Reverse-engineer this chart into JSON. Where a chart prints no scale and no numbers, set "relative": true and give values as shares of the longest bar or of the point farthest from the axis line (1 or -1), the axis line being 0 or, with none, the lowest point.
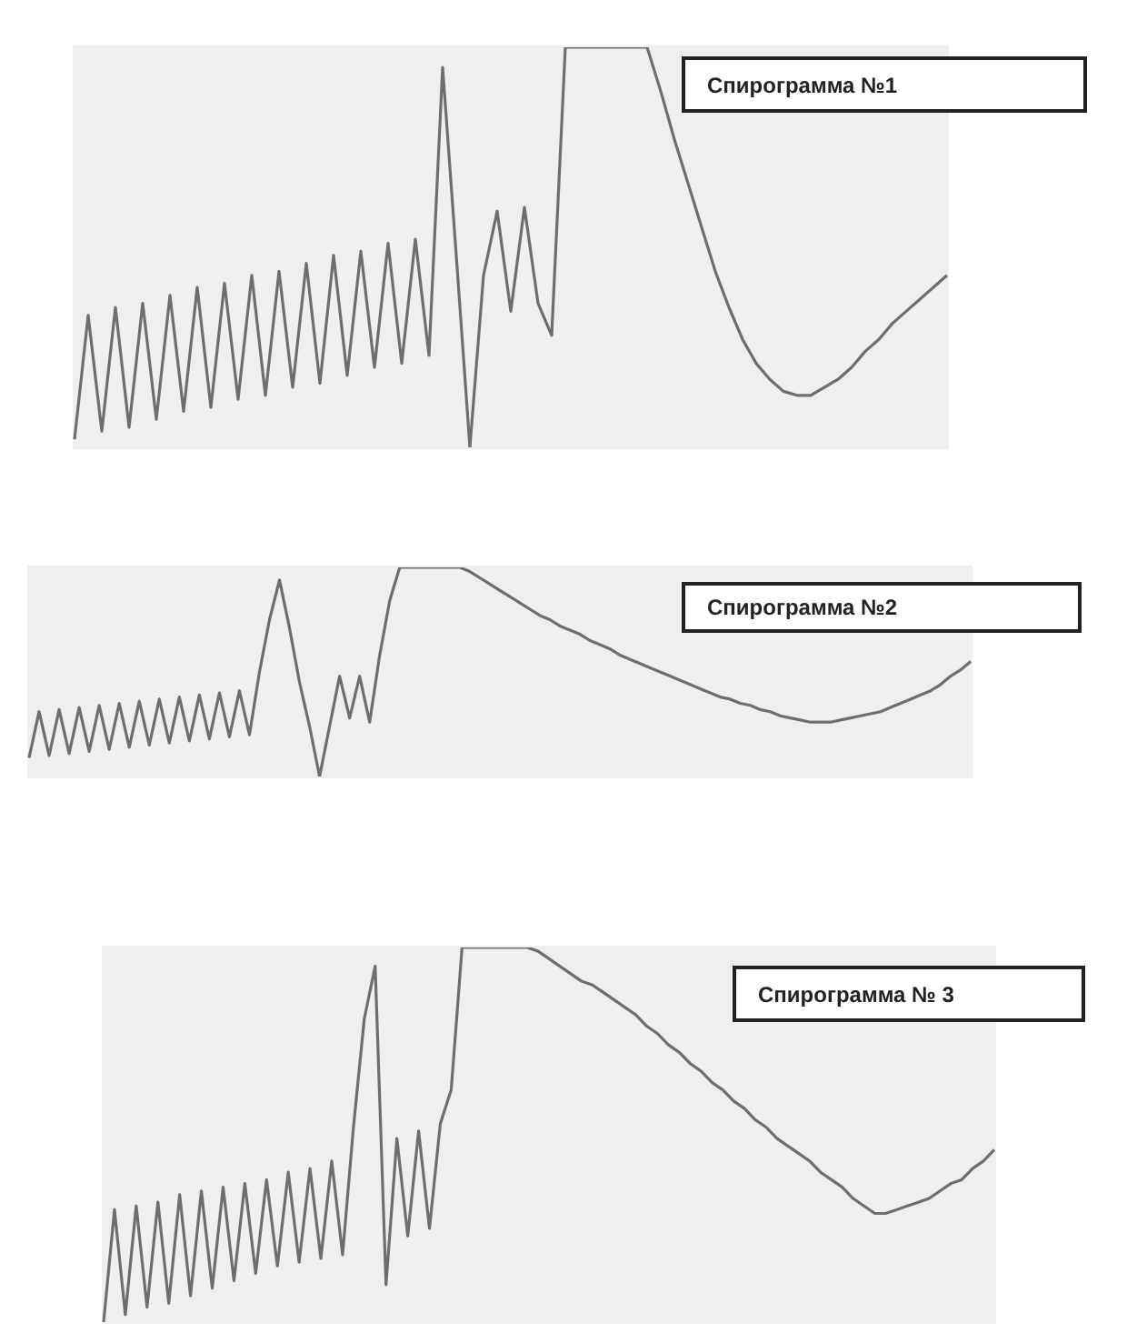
{
  "chart_data": [
    {
      "type": "line",
      "relative": true,
      "marker": "none",
      "color": "#6e6e6e",
      "annotations": [
        "Спирограмма №1"
      ],
      "categories": [
        null,
        null,
        null,
        null,
        null,
        null,
        null,
        null,
        null,
        null,
        null,
        null,
        null,
        null,
        null,
        null,
        null,
        null,
        null,
        null,
        null,
        null,
        null,
        null,
        null,
        null,
        null,
        null,
        null,
        null,
        null,
        null,
        null,
        null,
        null,
        null,
        null,
        null,
        null,
        null,
        null,
        null,
        null,
        null,
        null,
        null,
        null,
        null,
        null,
        null,
        null,
        null,
        null,
        null,
        null,
        null,
        null,
        null,
        null,
        null,
        null,
        null,
        null,
        null,
        null
      ],
      "values": [
        0.02,
        0.33,
        0.04,
        0.35,
        0.05,
        0.36,
        0.07,
        0.38,
        0.09,
        0.4,
        0.1,
        0.41,
        0.12,
        0.43,
        0.13,
        0.44,
        0.15,
        0.46,
        0.16,
        0.48,
        0.18,
        0.49,
        0.2,
        0.51,
        0.21,
        0.52,
        0.23,
        0.95,
        0.48,
        0,
        0.43,
        0.59,
        0.34,
        0.6,
        0.36,
        0.28,
        1,
        1,
        1,
        1,
        1,
        1,
        1,
        0.89,
        0.77,
        0.66,
        0.55,
        0.44,
        0.35,
        0.27,
        0.21,
        0.17,
        0.14,
        0.13,
        0.13,
        0.15,
        0.17,
        0.2,
        0.24,
        0.27,
        0.31,
        0.34,
        0.37,
        0.4,
        0.43
      ]
    },
    {
      "type": "line",
      "relative": true,
      "marker": "none",
      "color": "#6e6e6e",
      "annotations": [
        "Спирограмма №2"
      ],
      "categories": [
        null,
        null,
        null,
        null,
        null,
        null,
        null,
        null,
        null,
        null,
        null,
        null,
        null,
        null,
        null,
        null,
        null,
        null,
        null,
        null,
        null,
        null,
        null,
        null,
        null,
        null,
        null,
        null,
        null,
        null,
        null,
        null,
        null,
        null,
        null,
        null,
        null,
        null,
        null,
        null,
        null,
        null,
        null,
        null,
        null,
        null,
        null,
        null,
        null,
        null,
        null,
        null,
        null,
        null,
        null,
        null,
        null,
        null,
        null,
        null,
        null,
        null,
        null,
        null,
        null,
        null,
        null,
        null,
        null,
        null,
        null,
        null,
        null,
        null,
        null,
        null,
        null,
        null,
        null,
        null,
        null,
        null,
        null,
        null,
        null,
        null,
        null,
        null,
        null,
        null,
        null,
        null,
        null,
        null,
        null
      ],
      "values": [
        0.09,
        0.31,
        0.1,
        0.32,
        0.11,
        0.33,
        0.12,
        0.34,
        0.13,
        0.35,
        0.14,
        0.36,
        0.15,
        0.37,
        0.16,
        0.38,
        0.17,
        0.39,
        0.18,
        0.4,
        0.19,
        0.41,
        0.2,
        0.5,
        0.75,
        0.94,
        0.71,
        0.45,
        0.24,
        0,
        0.24,
        0.48,
        0.28,
        0.48,
        0.26,
        0.58,
        0.84,
        1,
        1,
        1,
        1,
        1,
        1,
        1,
        0.98,
        0.95,
        0.92,
        0.89,
        0.86,
        0.83,
        0.8,
        0.77,
        0.75,
        0.72,
        0.7,
        0.68,
        0.65,
        0.63,
        0.61,
        0.58,
        0.56,
        0.54,
        0.52,
        0.5,
        0.48,
        0.46,
        0.44,
        0.42,
        0.4,
        0.38,
        0.37,
        0.35,
        0.34,
        0.32,
        0.31,
        0.29,
        0.28,
        0.27,
        0.26,
        0.26,
        0.26,
        0.27,
        0.28,
        0.29,
        0.3,
        0.31,
        0.33,
        0.35,
        0.37,
        0.39,
        0.41,
        0.44,
        0.48,
        0.51,
        0.55
      ]
    },
    {
      "type": "line",
      "relative": true,
      "marker": "none",
      "color": "#6e6e6e",
      "annotations": [
        "Спирограмма № 3"
      ],
      "categories": [
        null,
        null,
        null,
        null,
        null,
        null,
        null,
        null,
        null,
        null,
        null,
        null,
        null,
        null,
        null,
        null,
        null,
        null,
        null,
        null,
        null,
        null,
        null,
        null,
        null,
        null,
        null,
        null,
        null,
        null,
        null,
        null,
        null,
        null,
        null,
        null,
        null,
        null,
        null,
        null,
        null,
        null,
        null,
        null,
        null,
        null,
        null,
        null,
        null,
        null,
        null,
        null,
        null,
        null,
        null,
        null,
        null,
        null,
        null,
        null,
        null,
        null,
        null,
        null,
        null,
        null,
        null,
        null,
        null,
        null,
        null,
        null,
        null,
        null,
        null,
        null,
        null,
        null,
        null,
        null,
        null,
        null,
        null
      ],
      "values": [
        0,
        0.3,
        0.02,
        0.31,
        0.04,
        0.32,
        0.05,
        0.34,
        0.07,
        0.35,
        0.09,
        0.36,
        0.11,
        0.37,
        0.13,
        0.38,
        0.15,
        0.4,
        0.16,
        0.41,
        0.17,
        0.43,
        0.18,
        0.52,
        0.81,
        0.95,
        0.1,
        0.49,
        0.23,
        0.51,
        0.25,
        0.53,
        0.62,
        1,
        1,
        1,
        1,
        1,
        1,
        1,
        0.99,
        0.97,
        0.95,
        0.93,
        0.91,
        0.9,
        0.88,
        0.86,
        0.84,
        0.82,
        0.79,
        0.77,
        0.74,
        0.72,
        0.69,
        0.67,
        0.64,
        0.62,
        0.59,
        0.57,
        0.54,
        0.52,
        0.49,
        0.47,
        0.45,
        0.43,
        0.4,
        0.38,
        0.36,
        0.33,
        0.31,
        0.29,
        0.29,
        0.3,
        0.31,
        0.32,
        0.33,
        0.35,
        0.37,
        0.38,
        0.41,
        0.43,
        0.46
      ]
    }
  ]
}
